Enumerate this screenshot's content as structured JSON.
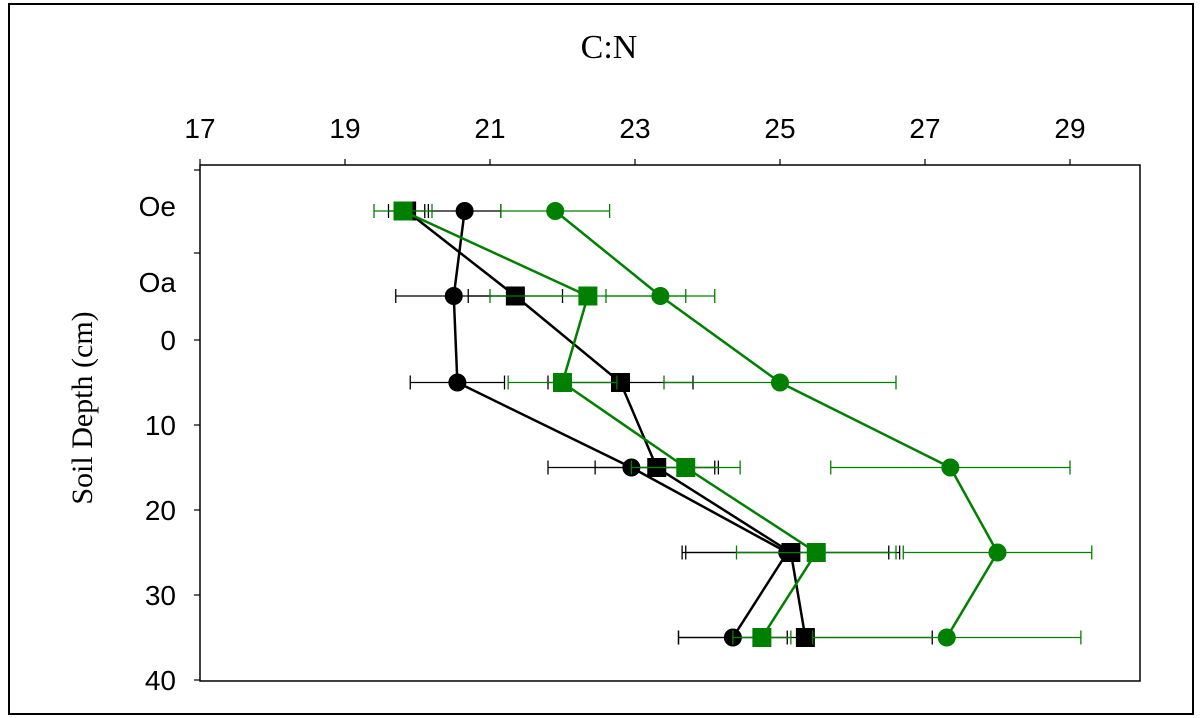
{
  "chart_data": {
    "type": "scatter",
    "title": "C:N",
    "ylabel": "Soil Depth (cm)",
    "xlim": [
      17,
      30
    ],
    "x_ticks": [
      17,
      19,
      21,
      23,
      25,
      27,
      29
    ],
    "y_ticks_numeric": [
      0,
      10,
      20,
      30,
      40
    ],
    "y_category_labels": [
      "Oe",
      "Oa"
    ],
    "depths": [
      "Oe",
      "Oa",
      5,
      15,
      25,
      35
    ],
    "grid": false,
    "legend": "none",
    "series": [
      {
        "color": "#000000",
        "marker": "circle",
        "points": [
          {
            "depth": "Oe",
            "x": 20.65,
            "err": 0.5
          },
          {
            "depth": "Oa",
            "x": 20.5,
            "err": 0.8
          },
          {
            "depth": 5,
            "x": 20.55,
            "err": 0.65
          },
          {
            "depth": 15,
            "x": 22.95,
            "err": 1.15
          },
          {
            "depth": 25,
            "x": 25.1,
            "err": 1.4
          },
          {
            "depth": 35,
            "x": 24.35,
            "err": 0.75
          }
        ]
      },
      {
        "color": "#000000",
        "marker": "square",
        "points": [
          {
            "depth": "Oe",
            "x": 19.85,
            "err": 0.25
          },
          {
            "depth": "Oa",
            "x": 21.35,
            "err": 0.65
          },
          {
            "depth": 5,
            "x": 22.8,
            "err": 1.0
          },
          {
            "depth": 15,
            "x": 23.3,
            "err": 0.85
          },
          {
            "depth": 25,
            "x": 25.15,
            "err": 1.5
          },
          {
            "depth": 35,
            "x": 25.35,
            "err": 1.75
          }
        ]
      },
      {
        "color": "#008000",
        "marker": "circle",
        "points": [
          {
            "depth": "Oe",
            "x": 21.9,
            "err": 0.75
          },
          {
            "depth": "Oa",
            "x": 23.35,
            "err": 0.75
          },
          {
            "depth": 5,
            "x": 25.0,
            "err": 1.6
          },
          {
            "depth": 15,
            "x": 27.35,
            "err": 1.65
          },
          {
            "depth": 25,
            "x": 28.0,
            "err": 1.3
          },
          {
            "depth": 35,
            "x": 27.3,
            "err": 1.85
          }
        ]
      },
      {
        "color": "#008000",
        "marker": "square",
        "points": [
          {
            "depth": "Oe",
            "x": 19.8,
            "err": 0.4
          },
          {
            "depth": "Oa",
            "x": 22.35,
            "err": 1.35
          },
          {
            "depth": 5,
            "x": 22.0,
            "err": 0.75
          },
          {
            "depth": 15,
            "x": 23.7,
            "err": 0.75
          },
          {
            "depth": 25,
            "x": 25.5,
            "err": 1.1
          },
          {
            "depth": 35,
            "x": 24.75,
            "err": 0.4
          }
        ]
      }
    ]
  }
}
